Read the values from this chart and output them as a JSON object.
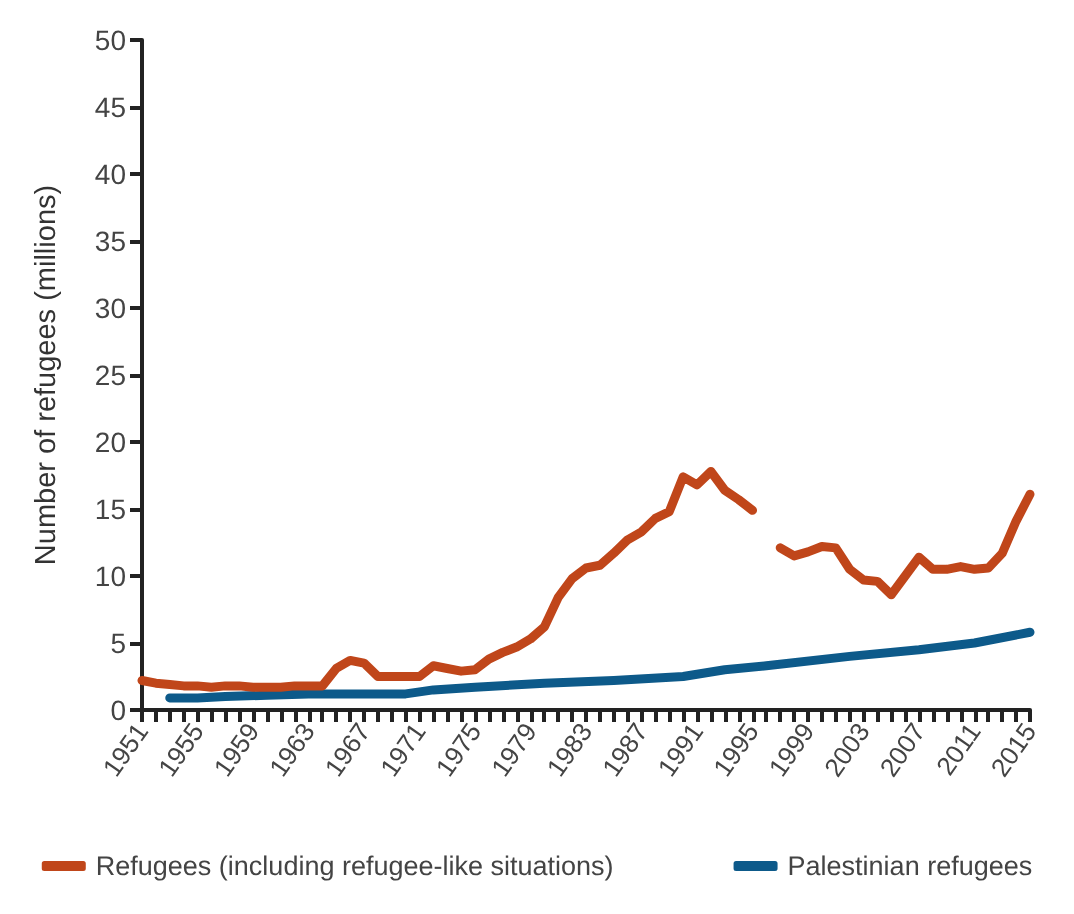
{
  "chart_data": {
    "type": "line",
    "ylabel": "Number of refugees (millions)",
    "xlim": [
      1951,
      2015
    ],
    "ylim": [
      0,
      50
    ],
    "yticks": [
      0,
      5,
      10,
      15,
      20,
      25,
      30,
      35,
      40,
      45,
      50
    ],
    "xticks": [
      1951,
      {
        "value": 1952,
        "label": null
      },
      {
        "value": 1953,
        "label": null
      },
      {
        "value": 1954,
        "label": null
      },
      1955,
      {
        "value": 1956,
        "label": null
      },
      {
        "value": 1957,
        "label": null
      },
      {
        "value": 1958,
        "label": null
      },
      1959,
      {
        "value": 1960,
        "label": null
      },
      {
        "value": 1961,
        "label": null
      },
      {
        "value": 1962,
        "label": null
      },
      1963,
      {
        "value": 1964,
        "label": null
      },
      {
        "value": 1965,
        "label": null
      },
      {
        "value": 1966,
        "label": null
      },
      1967,
      {
        "value": 1968,
        "label": null
      },
      {
        "value": 1969,
        "label": null
      },
      {
        "value": 1970,
        "label": null
      },
      1971,
      {
        "value": 1972,
        "label": null
      },
      {
        "value": 1973,
        "label": null
      },
      {
        "value": 1974,
        "label": null
      },
      1975,
      {
        "value": 1976,
        "label": null
      },
      {
        "value": 1977,
        "label": null
      },
      {
        "value": 1978,
        "label": null
      },
      1979,
      {
        "value": 1980,
        "label": null
      },
      {
        "value": 1981,
        "label": null
      },
      {
        "value": 1982,
        "label": null
      },
      1983,
      {
        "value": 1984,
        "label": null
      },
      {
        "value": 1985,
        "label": null
      },
      {
        "value": 1986,
        "label": null
      },
      1987,
      {
        "value": 1988,
        "label": null
      },
      {
        "value": 1989,
        "label": null
      },
      {
        "value": 1990,
        "label": null
      },
      1991,
      {
        "value": 1992,
        "label": null
      },
      {
        "value": 1993,
        "label": null
      },
      {
        "value": 1994,
        "label": null
      },
      1995,
      {
        "value": 1996,
        "label": null
      },
      {
        "value": 1997,
        "label": null
      },
      {
        "value": 1998,
        "label": null
      },
      1999,
      {
        "value": 2000,
        "label": null
      },
      {
        "value": 2001,
        "label": null
      },
      {
        "value": 2002,
        "label": null
      },
      2003,
      {
        "value": 2004,
        "label": null
      },
      {
        "value": 2005,
        "label": null
      },
      {
        "value": 2006,
        "label": null
      },
      2007,
      {
        "value": 2008,
        "label": null
      },
      {
        "value": 2009,
        "label": null
      },
      {
        "value": 2010,
        "label": null
      },
      2011,
      {
        "value": 2012,
        "label": null
      },
      {
        "value": 2013,
        "label": null
      },
      {
        "value": 2014,
        "label": null
      },
      2015
    ],
    "grid": false,
    "legend": "bottom",
    "marker": "none",
    "line_style": "solid",
    "series": [
      {
        "name": "Refugees (including refugee-like situations)",
        "color": "#c0461a",
        "x": [
          1951,
          1952,
          1953,
          1954,
          1955,
          1956,
          1957,
          1958,
          1959,
          1960,
          1961,
          1962,
          1963,
          1964,
          1965,
          1966,
          1967,
          1968,
          1969,
          1970,
          1971,
          1972,
          1973,
          1974,
          1975,
          1976,
          1977,
          1978,
          1979,
          1980,
          1981,
          1982,
          1983,
          1984,
          1985,
          1986,
          1987,
          1988,
          1989,
          1990,
          1991,
          1992,
          1993,
          1994,
          1995,
          1996,
          1997,
          1998,
          1999,
          2000,
          2001,
          2002,
          2003,
          2004,
          2005,
          2006,
          2007,
          2008,
          2009,
          2010,
          2011,
          2012,
          2013,
          2014,
          2015
        ],
        "values": [
          2.2,
          2.0,
          1.9,
          1.8,
          1.8,
          1.7,
          1.8,
          1.8,
          1.7,
          1.7,
          1.7,
          1.8,
          1.8,
          1.8,
          3.1,
          3.7,
          3.5,
          2.5,
          2.5,
          2.5,
          2.5,
          3.3,
          3.1,
          2.9,
          3.0,
          3.8,
          4.3,
          4.7,
          5.3,
          6.2,
          8.4,
          9.8,
          10.6,
          10.8,
          11.7,
          12.7,
          13.3,
          14.3,
          14.8,
          17.4,
          16.8,
          17.8,
          16.4,
          15.7,
          14.9,
          null,
          12.1,
          11.5,
          11.8,
          12.2,
          12.1,
          10.5,
          9.7,
          9.6,
          8.6,
          10.0,
          11.4,
          10.5,
          10.5,
          10.7,
          10.5,
          10.6,
          11.7,
          14.1,
          16.1
        ]
      },
      {
        "name": "Palestinian refugees",
        "color": "#0d5a8a",
        "x": [
          1953,
          1955,
          1957,
          1960,
          1963,
          1970,
          1972,
          1975,
          1980,
          1985,
          1990,
          1993,
          1996,
          2002,
          2007,
          2011,
          2015
        ],
        "values": [
          0.9,
          0.9,
          1.0,
          1.1,
          1.2,
          1.2,
          1.5,
          1.7,
          2.0,
          2.2,
          2.5,
          3.0,
          3.3,
          4.0,
          4.5,
          5.0,
          5.8
        ]
      }
    ]
  }
}
